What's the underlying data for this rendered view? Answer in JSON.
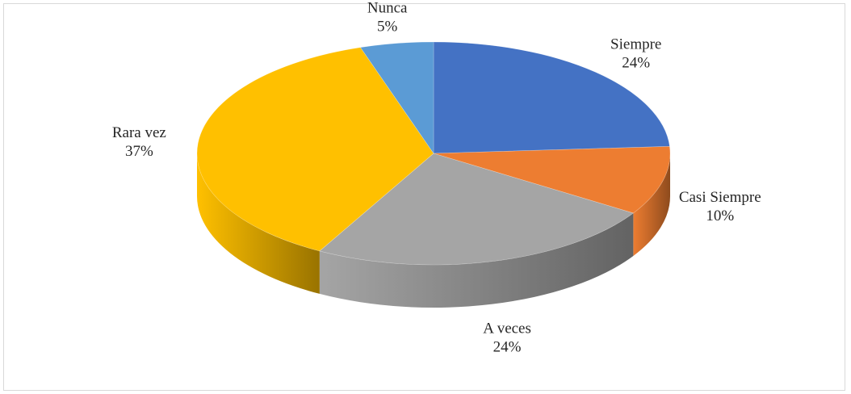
{
  "chart_data": {
    "type": "pie",
    "style": "3d-exploded-none",
    "title": "",
    "start_angle_deg": 0,
    "direction": "clockwise",
    "slices": [
      {
        "label": "Siempre",
        "percent_label": "24%",
        "value": 24,
        "color": "#4472c4"
      },
      {
        "label": "Casi Siempre",
        "percent_label": "10%",
        "value": 10,
        "color": "#ed7d31"
      },
      {
        "label": "A veces",
        "percent_label": "24%",
        "value": 24,
        "color": "#a5a5a5"
      },
      {
        "label": "Rara vez",
        "percent_label": "37%",
        "value": 37,
        "color": "#ffc000"
      },
      {
        "label": "Nunca",
        "percent_label": "5%",
        "value": 5,
        "color": "#5b9bd5"
      }
    ]
  }
}
